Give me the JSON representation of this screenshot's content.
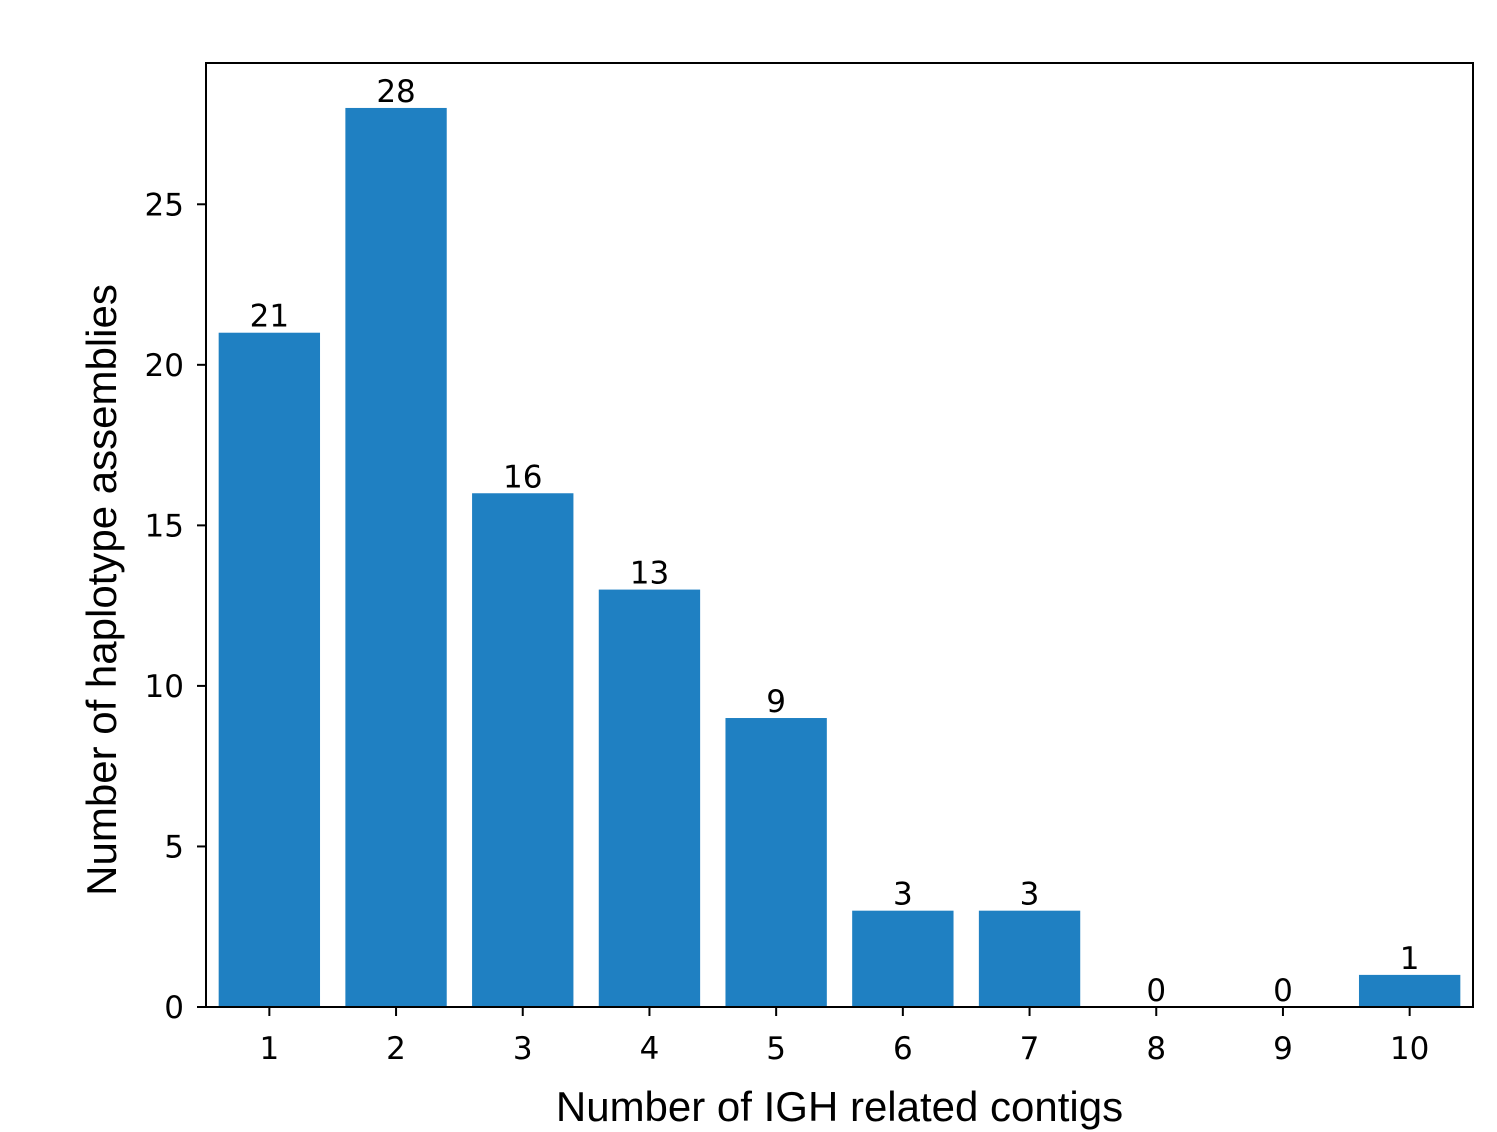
{
  "chart_data": {
    "type": "bar",
    "title": "",
    "xlabel": "Number of IGH related contigs",
    "ylabel": "Number of haplotype assemblies",
    "categories": [
      "1",
      "2",
      "3",
      "4",
      "5",
      "6",
      "7",
      "8",
      "9",
      "10"
    ],
    "values": [
      21,
      28,
      16,
      13,
      9,
      3,
      3,
      0,
      0,
      1
    ],
    "data_labels": [
      "21",
      "28",
      "16",
      "13",
      "9",
      "3",
      "3",
      "0",
      "0",
      "1"
    ],
    "yticks": [
      0,
      5,
      10,
      15,
      20,
      25
    ],
    "ytick_labels": [
      "0",
      "5",
      "10",
      "15",
      "20",
      "25"
    ],
    "ylim": [
      0,
      29.4
    ],
    "bar_color": "#1f80c2",
    "grid": false,
    "legend": "none"
  }
}
